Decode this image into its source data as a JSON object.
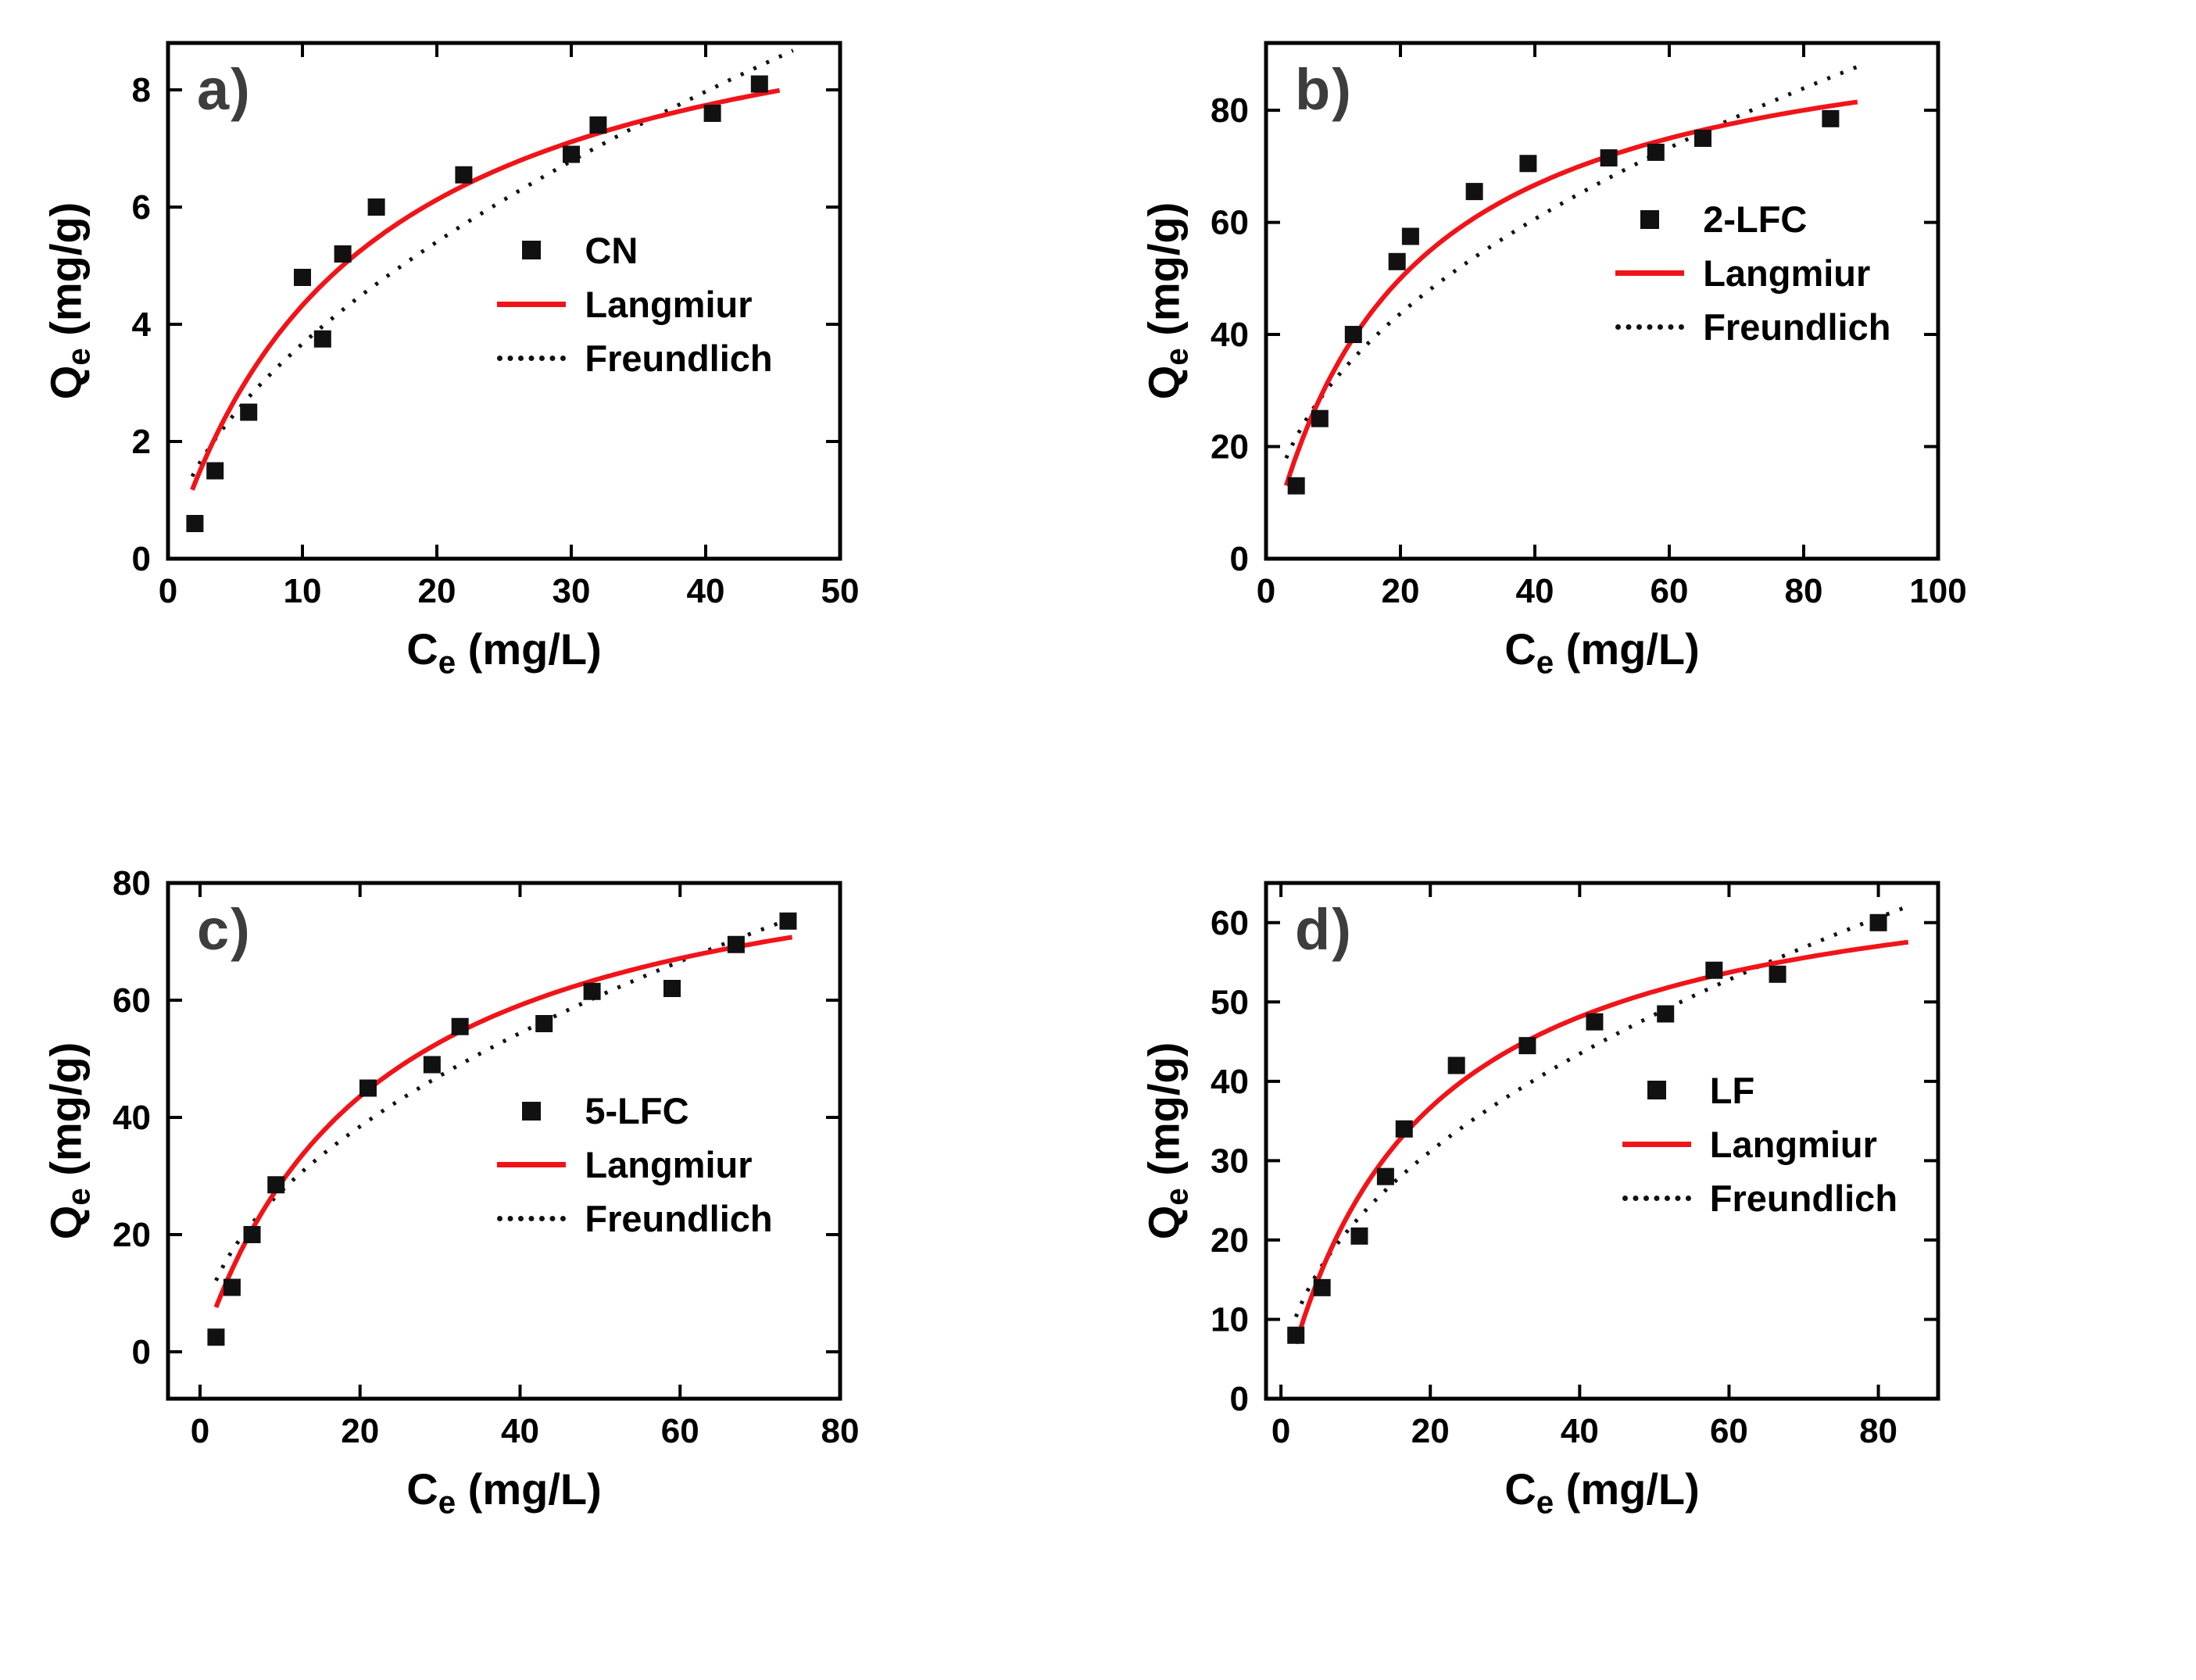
{
  "figure": {
    "background": "#ffffff"
  },
  "colors": {
    "langmuir_line": "#f01419",
    "freundlich_line": "#111111",
    "marker": "#111111",
    "axis": "#000000",
    "panel_letter": "#3d3d3d"
  },
  "chart_data": [
    {
      "type": "scatter",
      "panel_label": "a)",
      "series_name": "CN",
      "xlabel": {
        "pre": "C",
        "sub": "e",
        "post": " (mg/L)"
      },
      "ylabel": {
        "pre": "Q",
        "sub": "e",
        "post": " (mg/g)"
      },
      "xlim": [
        0,
        50
      ],
      "ylim": [
        0,
        8.8
      ],
      "xticks": [
        0,
        10,
        20,
        30,
        40,
        50
      ],
      "yticks": [
        0,
        2,
        4,
        6,
        8
      ],
      "grid": false,
      "points": [
        [
          2,
          0.6
        ],
        [
          3.5,
          1.5
        ],
        [
          6,
          2.5
        ],
        [
          10,
          4.8
        ],
        [
          11.5,
          3.75
        ],
        [
          13,
          5.2
        ],
        [
          15.5,
          6.0
        ],
        [
          22,
          6.55
        ],
        [
          30,
          6.9
        ],
        [
          32,
          7.4
        ],
        [
          40.5,
          7.6
        ],
        [
          44,
          8.1
        ]
      ],
      "fits": {
        "langmuir": {
          "qmax": 10.5,
          "k": 0.07,
          "x_range": [
            1.8,
            45.5
          ]
        },
        "freundlich": {
          "kf": 1.01,
          "n_exp": 0.56,
          "x_range": [
            1.8,
            46.5
          ]
        }
      },
      "legend": {
        "series": "CN",
        "langmuir": "Langmiur",
        "freundlich": "Freundlich"
      },
      "legend_pos": {
        "x": 0.49,
        "y": 0.36
      }
    },
    {
      "type": "scatter",
      "panel_label": "b)",
      "series_name": "2-LFC",
      "xlabel": {
        "pre": "C",
        "sub": "e",
        "post": " (mg/L)"
      },
      "ylabel": {
        "pre": "Q",
        "sub": "e",
        "post": " (mg/g)"
      },
      "xlim": [
        0,
        100
      ],
      "ylim": [
        0,
        92
      ],
      "xticks": [
        0,
        20,
        40,
        60,
        80,
        100
      ],
      "yticks": [
        0,
        20,
        40,
        60,
        80
      ],
      "grid": false,
      "points": [
        [
          4.5,
          13
        ],
        [
          8,
          25
        ],
        [
          13,
          40
        ],
        [
          19.5,
          53
        ],
        [
          21.5,
          57.5
        ],
        [
          31,
          65.5
        ],
        [
          39,
          70.5
        ],
        [
          51,
          71.5
        ],
        [
          58,
          72.5
        ],
        [
          65,
          75
        ],
        [
          84,
          78.5
        ]
      ],
      "fits": {
        "langmuir": {
          "qmax": 100,
          "k": 0.05,
          "x_range": [
            3,
            88
          ]
        },
        "freundlich": {
          "kf": 10.7,
          "n_exp": 0.47,
          "x_range": [
            3,
            88
          ]
        }
      },
      "legend": {
        "series": "2-LFC",
        "langmuir": "Langmiur",
        "freundlich": "Freundlich"
      },
      "legend_pos": {
        "x": 0.52,
        "y": 0.3
      }
    },
    {
      "type": "scatter",
      "panel_label": "c)",
      "series_name": "5-LFC",
      "xlabel": {
        "pre": "C",
        "sub": "e",
        "post": " (mg/L)"
      },
      "ylabel": {
        "pre": "Q",
        "sub": "e",
        "post": " (mg/g)"
      },
      "xlim": [
        -4,
        80
      ],
      "ylim": [
        -8,
        80
      ],
      "xticks": [
        0,
        20,
        40,
        60,
        80
      ],
      "yticks": [
        0,
        20,
        40,
        60,
        80
      ],
      "grid": false,
      "points": [
        [
          2,
          2.5
        ],
        [
          4,
          11
        ],
        [
          6.5,
          20
        ],
        [
          9.5,
          28.5
        ],
        [
          21,
          45
        ],
        [
          29,
          49
        ],
        [
          32.5,
          55.5
        ],
        [
          43,
          56
        ],
        [
          49,
          61.5
        ],
        [
          59,
          62
        ],
        [
          67,
          69.5
        ],
        [
          73.5,
          73.5
        ]
      ],
      "fits": {
        "langmuir": {
          "qmax": 92,
          "k": 0.045,
          "x_range": [
            2,
            74
          ]
        },
        "freundlich": {
          "kf": 8.6,
          "n_exp": 0.5,
          "x_range": [
            2,
            75
          ]
        }
      },
      "legend": {
        "series": "5-LFC",
        "langmuir": "Langmiur",
        "freundlich": "Freundlich"
      },
      "legend_pos": {
        "x": 0.49,
        "y": 0.4
      }
    },
    {
      "type": "scatter",
      "panel_label": "d)",
      "series_name": "LF",
      "xlabel": {
        "pre": "C",
        "sub": "e",
        "post": " (mg/L)"
      },
      "ylabel": {
        "pre": "Q",
        "sub": "e",
        "post": " (mg/g)"
      },
      "xlim": [
        -2,
        88
      ],
      "ylim": [
        0,
        65
      ],
      "xticks": [
        0,
        20,
        40,
        60,
        80
      ],
      "yticks": [
        0,
        10,
        20,
        30,
        40,
        50,
        60
      ],
      "grid": false,
      "points": [
        [
          2,
          8
        ],
        [
          5.5,
          14
        ],
        [
          10.5,
          20.5
        ],
        [
          14,
          28
        ],
        [
          16.5,
          34
        ],
        [
          23.5,
          42
        ],
        [
          33,
          44.5
        ],
        [
          42,
          47.5
        ],
        [
          51.5,
          48.5
        ],
        [
          58,
          54
        ],
        [
          66.5,
          53.5
        ],
        [
          80,
          60
        ]
      ],
      "fits": {
        "langmuir": {
          "qmax": 70,
          "k": 0.055,
          "x_range": [
            2,
            84
          ]
        },
        "freundlich": {
          "kf": 7.4,
          "n_exp": 0.48,
          "x_range": [
            2,
            84
          ]
        }
      },
      "legend": {
        "series": "LF",
        "langmuir": "Langmiur",
        "freundlich": "Freundlich"
      },
      "legend_pos": {
        "x": 0.53,
        "y": 0.36
      }
    }
  ]
}
